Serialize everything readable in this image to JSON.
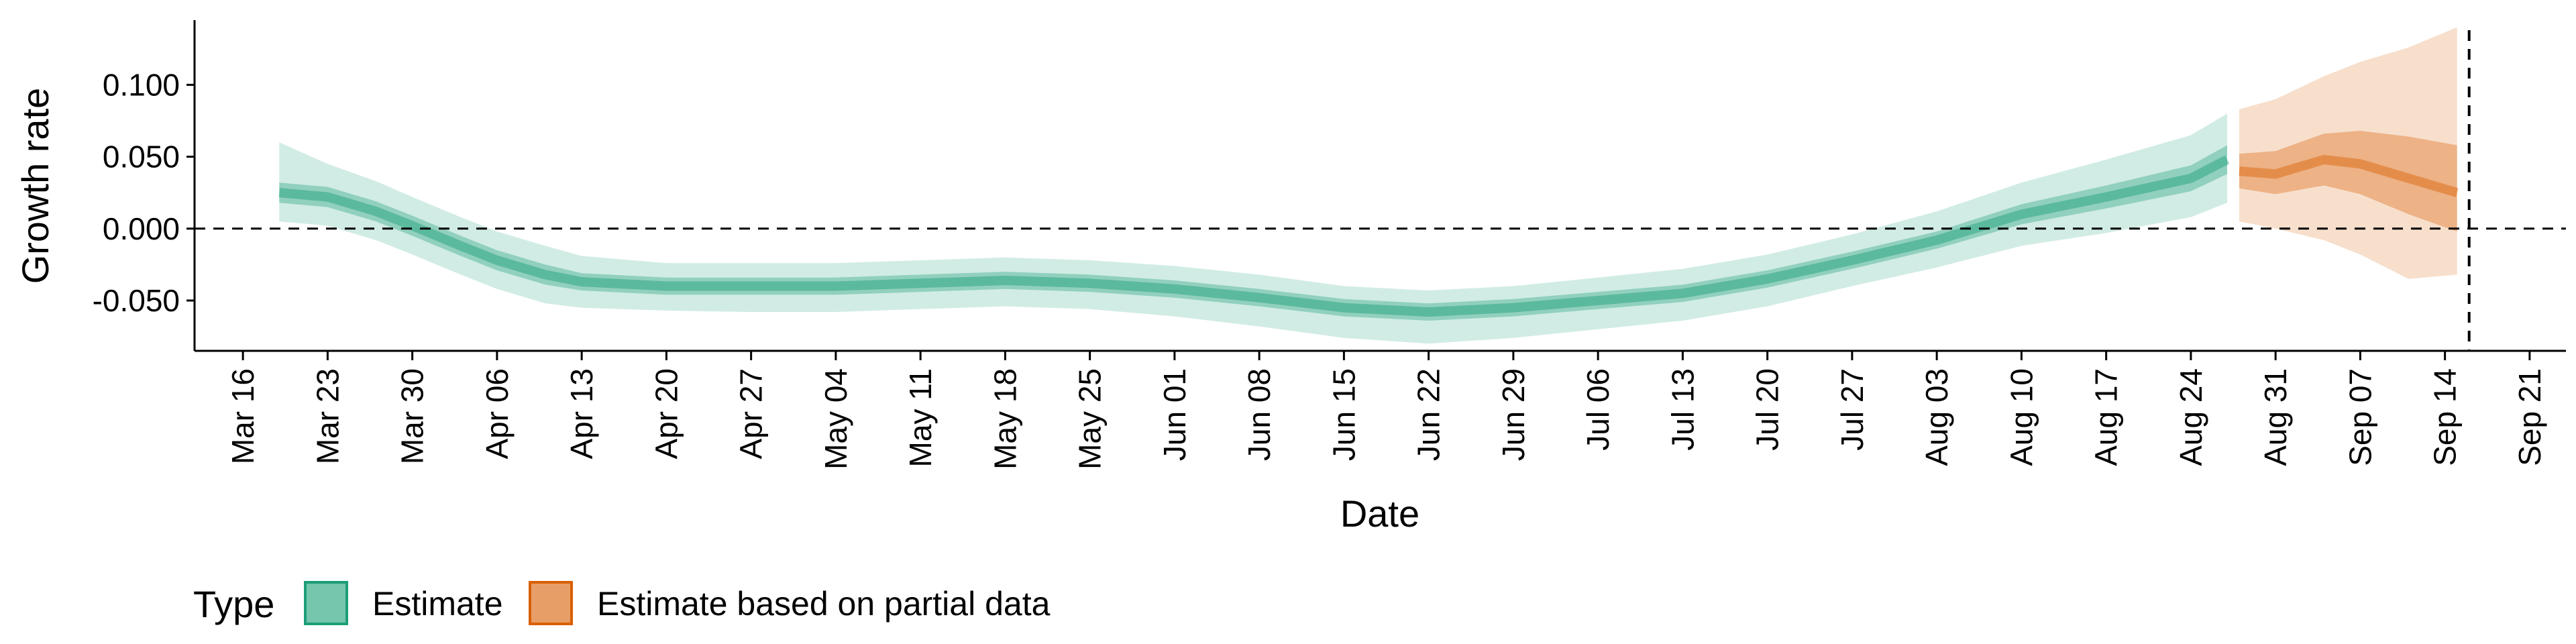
{
  "chart_data": {
    "type": "area",
    "title": "",
    "xlabel": "Date",
    "ylabel": "Growth rate",
    "x_range": [
      "2020-03-12",
      "2020-09-24"
    ],
    "ylim": [
      -0.085,
      0.145
    ],
    "y_ticks": [
      -0.05,
      0.0,
      0.05,
      0.1
    ],
    "y_tick_labels": [
      "-0.050",
      "0.000",
      "0.050",
      "0.100"
    ],
    "x_ticks": [
      "2020-03-16",
      "2020-03-23",
      "2020-03-30",
      "2020-04-06",
      "2020-04-13",
      "2020-04-20",
      "2020-04-27",
      "2020-05-04",
      "2020-05-11",
      "2020-05-18",
      "2020-05-25",
      "2020-06-01",
      "2020-06-08",
      "2020-06-15",
      "2020-06-22",
      "2020-06-29",
      "2020-07-06",
      "2020-07-13",
      "2020-07-20",
      "2020-07-27",
      "2020-08-03",
      "2020-08-10",
      "2020-08-17",
      "2020-08-24",
      "2020-08-31",
      "2020-09-07",
      "2020-09-14",
      "2020-09-21"
    ],
    "x_tick_labels": [
      "Mar 16",
      "Mar 23",
      "Mar 30",
      "Apr 06",
      "Apr 13",
      "Apr 20",
      "Apr 27",
      "May 04",
      "May 11",
      "May 18",
      "May 25",
      "Jun 01",
      "Jun 08",
      "Jun 15",
      "Jun 22",
      "Jun 29",
      "Jul 06",
      "Jul 13",
      "Jul 20",
      "Jul 27",
      "Aug 03",
      "Aug 10",
      "Aug 17",
      "Aug 24",
      "Aug 31",
      "Sep 07",
      "Sep 14",
      "Sep 21"
    ],
    "reference_lines": {
      "y": 0.0,
      "x": "2020-09-16"
    },
    "grid": false,
    "legend": {
      "title": "Type",
      "position": "bottom",
      "entries": [
        {
          "label": "Estimate",
          "color": "#1b9e77"
        },
        {
          "label": "Estimate based on partial data",
          "color": "#d95f02"
        }
      ]
    },
    "series": [
      {
        "name": "Estimate",
        "color": "#1b9e77",
        "points": [
          {
            "x": "2020-03-19",
            "median": 0.025,
            "lower_50": 0.018,
            "upper_50": 0.032,
            "lower_90": 0.005,
            "upper_90": 0.06
          },
          {
            "x": "2020-03-23",
            "median": 0.022,
            "lower_50": 0.015,
            "upper_50": 0.029,
            "lower_90": 0.002,
            "upper_90": 0.045
          },
          {
            "x": "2020-03-27",
            "median": 0.012,
            "lower_50": 0.005,
            "upper_50": 0.019,
            "lower_90": -0.008,
            "upper_90": 0.033
          },
          {
            "x": "2020-03-30",
            "median": 0.002,
            "lower_50": -0.005,
            "upper_50": 0.009,
            "lower_90": -0.018,
            "upper_90": 0.022
          },
          {
            "x": "2020-04-03",
            "median": -0.012,
            "lower_50": -0.019,
            "upper_50": -0.005,
            "lower_90": -0.032,
            "upper_90": 0.008
          },
          {
            "x": "2020-04-06",
            "median": -0.022,
            "lower_50": -0.029,
            "upper_50": -0.015,
            "lower_90": -0.042,
            "upper_90": -0.002
          },
          {
            "x": "2020-04-10",
            "median": -0.032,
            "lower_50": -0.039,
            "upper_50": -0.025,
            "lower_90": -0.052,
            "upper_90": -0.012
          },
          {
            "x": "2020-04-13",
            "median": -0.037,
            "lower_50": -0.043,
            "upper_50": -0.031,
            "lower_90": -0.055,
            "upper_90": -0.019
          },
          {
            "x": "2020-04-20",
            "median": -0.04,
            "lower_50": -0.046,
            "upper_50": -0.034,
            "lower_90": -0.057,
            "upper_90": -0.024
          },
          {
            "x": "2020-04-27",
            "median": -0.04,
            "lower_50": -0.046,
            "upper_50": -0.034,
            "lower_90": -0.058,
            "upper_90": -0.024
          },
          {
            "x": "2020-05-04",
            "median": -0.04,
            "lower_50": -0.046,
            "upper_50": -0.034,
            "lower_90": -0.058,
            "upper_90": -0.024
          },
          {
            "x": "2020-05-11",
            "median": -0.038,
            "lower_50": -0.044,
            "upper_50": -0.032,
            "lower_90": -0.056,
            "upper_90": -0.022
          },
          {
            "x": "2020-05-18",
            "median": -0.036,
            "lower_50": -0.042,
            "upper_50": -0.03,
            "lower_90": -0.054,
            "upper_90": -0.02
          },
          {
            "x": "2020-05-25",
            "median": -0.038,
            "lower_50": -0.044,
            "upper_50": -0.032,
            "lower_90": -0.056,
            "upper_90": -0.022
          },
          {
            "x": "2020-06-01",
            "median": -0.042,
            "lower_50": -0.048,
            "upper_50": -0.036,
            "lower_90": -0.061,
            "upper_90": -0.026
          },
          {
            "x": "2020-06-08",
            "median": -0.048,
            "lower_50": -0.054,
            "upper_50": -0.042,
            "lower_90": -0.068,
            "upper_90": -0.032
          },
          {
            "x": "2020-06-15",
            "median": -0.055,
            "lower_50": -0.061,
            "upper_50": -0.049,
            "lower_90": -0.076,
            "upper_90": -0.04
          },
          {
            "x": "2020-06-22",
            "median": -0.058,
            "lower_50": -0.064,
            "upper_50": -0.052,
            "lower_90": -0.08,
            "upper_90": -0.043
          },
          {
            "x": "2020-06-29",
            "median": -0.055,
            "lower_50": -0.061,
            "upper_50": -0.049,
            "lower_90": -0.076,
            "upper_90": -0.04
          },
          {
            "x": "2020-07-06",
            "median": -0.05,
            "lower_50": -0.056,
            "upper_50": -0.044,
            "lower_90": -0.07,
            "upper_90": -0.034
          },
          {
            "x": "2020-07-13",
            "median": -0.045,
            "lower_50": -0.051,
            "upper_50": -0.039,
            "lower_90": -0.064,
            "upper_90": -0.028
          },
          {
            "x": "2020-07-20",
            "median": -0.035,
            "lower_50": -0.041,
            "upper_50": -0.029,
            "lower_90": -0.054,
            "upper_90": -0.018
          },
          {
            "x": "2020-07-27",
            "median": -0.022,
            "lower_50": -0.028,
            "upper_50": -0.016,
            "lower_90": -0.04,
            "upper_90": -0.004
          },
          {
            "x": "2020-08-03",
            "median": -0.008,
            "lower_50": -0.014,
            "upper_50": -0.002,
            "lower_90": -0.027,
            "upper_90": 0.012
          },
          {
            "x": "2020-08-10",
            "median": 0.01,
            "lower_50": 0.003,
            "upper_50": 0.017,
            "lower_90": -0.012,
            "upper_90": 0.032
          },
          {
            "x": "2020-08-17",
            "median": 0.022,
            "lower_50": 0.014,
            "upper_50": 0.03,
            "lower_90": -0.003,
            "upper_90": 0.048
          },
          {
            "x": "2020-08-24",
            "median": 0.035,
            "lower_50": 0.026,
            "upper_50": 0.044,
            "lower_90": 0.008,
            "upper_90": 0.065
          },
          {
            "x": "2020-08-27",
            "median": 0.048,
            "lower_50": 0.038,
            "upper_50": 0.058,
            "lower_90": 0.018,
            "upper_90": 0.08
          }
        ]
      },
      {
        "name": "Estimate based on partial data",
        "color": "#d95f02",
        "points": [
          {
            "x": "2020-08-28",
            "median": 0.04,
            "lower_50": 0.028,
            "upper_50": 0.052,
            "lower_90": 0.005,
            "upper_90": 0.083
          },
          {
            "x": "2020-08-31",
            "median": 0.038,
            "lower_50": 0.024,
            "upper_50": 0.054,
            "lower_90": 0.0,
            "upper_90": 0.09
          },
          {
            "x": "2020-09-04",
            "median": 0.048,
            "lower_50": 0.03,
            "upper_50": 0.066,
            "lower_90": -0.008,
            "upper_90": 0.106
          },
          {
            "x": "2020-09-07",
            "median": 0.045,
            "lower_50": 0.024,
            "upper_50": 0.068,
            "lower_90": -0.018,
            "upper_90": 0.116
          },
          {
            "x": "2020-09-11",
            "median": 0.035,
            "lower_50": 0.01,
            "upper_50": 0.064,
            "lower_90": -0.035,
            "upper_90": 0.126
          },
          {
            "x": "2020-09-15",
            "median": 0.025,
            "lower_50": -0.002,
            "upper_50": 0.058,
            "lower_90": -0.032,
            "upper_90": 0.14
          }
        ]
      }
    ]
  }
}
